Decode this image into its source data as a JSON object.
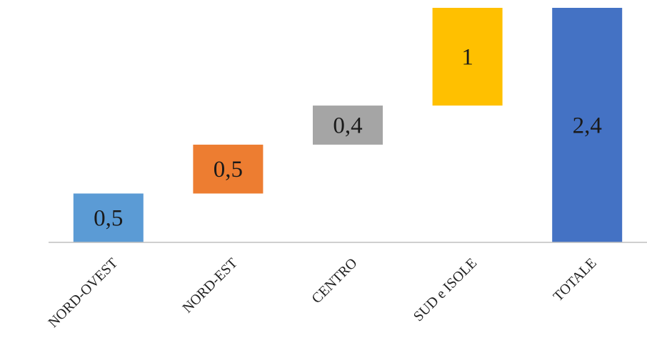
{
  "chart_data": {
    "type": "waterfall",
    "categories": [
      "NORD-OVEST",
      "NORD-EST",
      "CENTRO",
      "SUD e ISOLE",
      "TOTALE"
    ],
    "values": [
      0.5,
      0.5,
      0.4,
      1,
      2.4
    ],
    "value_labels": [
      "0,5",
      "0,5",
      "0,4",
      "1",
      "2,4"
    ],
    "total_index": 4,
    "colors": [
      "#5b9bd5",
      "#ed7d31",
      "#a5a5a5",
      "#ffc000",
      "#4472c4"
    ],
    "ylim": [
      0,
      2.4
    ],
    "title": "",
    "xlabel": "",
    "ylabel": "",
    "grid": false,
    "legend": "none"
  }
}
